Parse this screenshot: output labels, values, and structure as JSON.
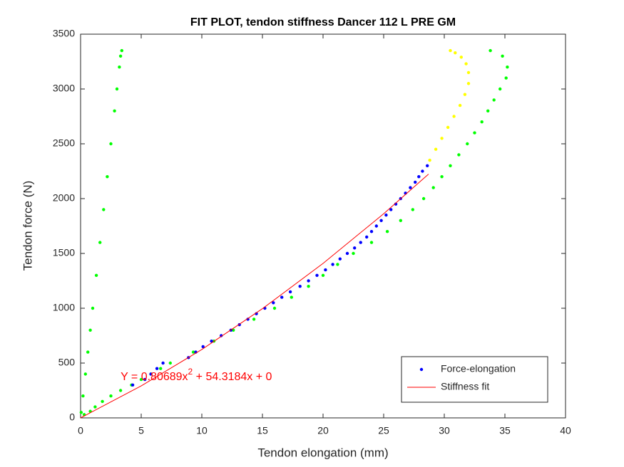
{
  "chart_data": {
    "type": "scatter",
    "title": "FIT PLOT, tendon stiffness Dancer 112 L PRE GM",
    "x_label": "Tendon elongation (mm)",
    "y_label": "Tendon force (N)",
    "xlim": [
      0,
      40
    ],
    "xticks": [
      0,
      5,
      10,
      15,
      20,
      25,
      30,
      35,
      40
    ],
    "ylim": [
      0,
      3500
    ],
    "yticks": [
      0,
      500,
      1000,
      1500,
      2000,
      2500,
      3000,
      3500
    ],
    "grid": false,
    "legend": "southeast",
    "annotation": [
      "Y = 0.80689x",
      "2",
      " + 54.3184x + 0"
    ],
    "series": [
      {
        "color": "#00ff00",
        "style": "dots",
        "x": [
          0.05,
          0.2,
          0.4,
          0.6,
          0.8,
          1.0,
          1.3,
          1.6,
          1.9,
          2.2,
          2.5,
          2.8,
          3.0,
          3.2,
          3.3,
          3.4
        ],
        "values": [
          50,
          200,
          400,
          600,
          800,
          1000,
          1300,
          1600,
          1900,
          2200,
          2500,
          2800,
          3000,
          3200,
          3300,
          3350
        ]
      },
      {
        "color": "#00ff00",
        "style": "dots",
        "x": [
          0.3,
          0.8,
          1.2,
          1.8,
          2.5,
          3.3,
          4.2,
          5.0,
          5.8,
          6.6,
          7.4,
          9.3,
          11.0,
          12.6,
          14.3,
          16.0,
          17.4,
          18.8,
          20.0,
          21.2,
          22.5,
          24.0,
          25.3,
          26.4,
          27.4,
          28.3,
          29.1,
          29.8,
          30.5,
          31.2,
          31.9,
          32.5,
          33.1,
          33.6,
          34.1,
          34.6,
          35.1,
          35.2,
          34.8,
          33.8
        ],
        "values": [
          30,
          60,
          100,
          150,
          200,
          250,
          300,
          350,
          400,
          450,
          500,
          600,
          700,
          800,
          900,
          1000,
          1100,
          1200,
          1300,
          1400,
          1500,
          1600,
          1700,
          1800,
          1900,
          2000,
          2100,
          2200,
          2300,
          2400,
          2500,
          2600,
          2700,
          2800,
          2900,
          3000,
          3100,
          3200,
          3300,
          3350
        ]
      },
      {
        "color": "#ffff00",
        "style": "dots",
        "x": [
          28.8,
          29.3,
          29.8,
          30.3,
          30.8,
          31.3,
          31.7,
          32.0,
          32.0,
          31.8,
          31.4,
          30.9,
          30.5
        ],
        "values": [
          2350,
          2450,
          2550,
          2650,
          2750,
          2850,
          2950,
          3050,
          3150,
          3230,
          3290,
          3330,
          3350
        ]
      },
      {
        "name": "Force-elongation",
        "color": "#0000ff",
        "style": "dots",
        "x": [
          4.3,
          5.3,
          5.8,
          6.3,
          6.8,
          8.9,
          9.5,
          10.1,
          10.8,
          11.6,
          12.4,
          13.1,
          13.8,
          14.5,
          15.2,
          15.9,
          16.6,
          17.3,
          18.1,
          18.8,
          19.5,
          20.2,
          20.8,
          21.4,
          22.0,
          22.6,
          23.1,
          23.6,
          24.0,
          24.4,
          24.8,
          25.2,
          25.6,
          26.0,
          26.4,
          26.8,
          27.2,
          27.6,
          27.9,
          28.2,
          28.6
        ],
        "values": [
          300,
          350,
          400,
          450,
          500,
          550,
          600,
          650,
          700,
          750,
          800,
          850,
          900,
          950,
          1000,
          1050,
          1100,
          1150,
          1200,
          1250,
          1300,
          1350,
          1400,
          1450,
          1500,
          1550,
          1600,
          1650,
          1700,
          1750,
          1800,
          1850,
          1900,
          1950,
          2000,
          2050,
          2100,
          2150,
          2200,
          2250,
          2300
        ]
      },
      {
        "name": "Stiffness fit",
        "color": "#ff0000",
        "style": "line",
        "x": [
          0,
          5,
          10,
          15,
          20,
          25,
          28.7
        ],
        "values": [
          0,
          291.8,
          623.9,
          996.3,
          1409.1,
          1862.3,
          2223.5
        ]
      }
    ]
  }
}
